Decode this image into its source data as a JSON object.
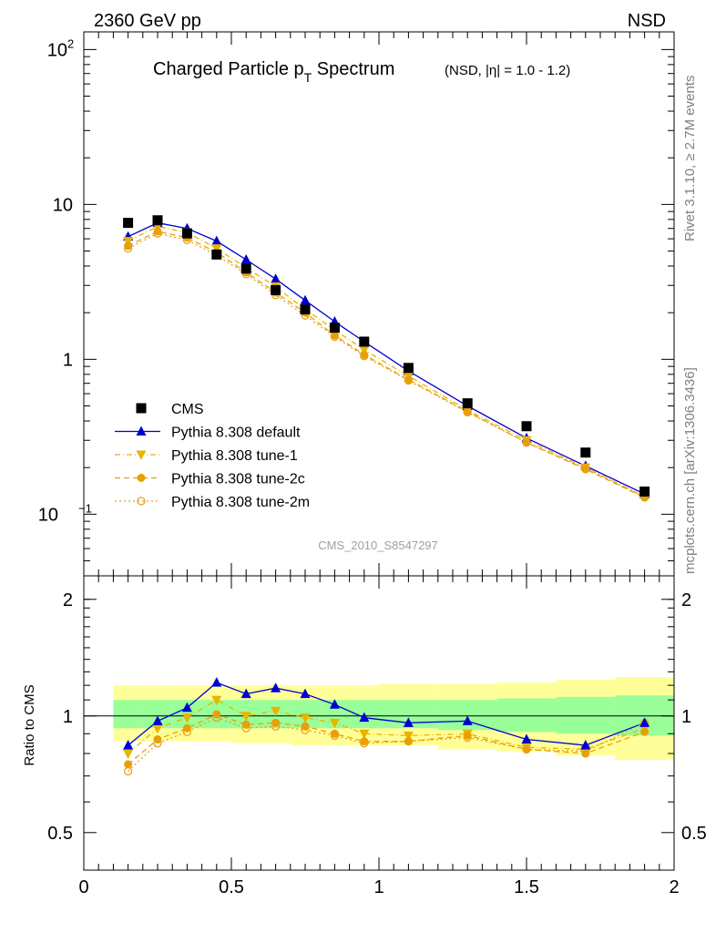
{
  "header": {
    "left": "2360 GeV pp",
    "right": "NSD"
  },
  "side_labels": {
    "rivet": "Rivet 3.1.10, ≥ 2.7M events",
    "mcplots": "mcplots.cern.ch [arXiv:1306.3436]"
  },
  "chart_data": [
    {
      "type": "scatter",
      "title": "Charged Particle p",
      "title_subscript": "T",
      "title_suffix": " Spectrum",
      "subtitle": "(NSD, |η| = 1.0 - 1.2)",
      "watermark": "CMS_2010_S8547297",
      "xlabel": "",
      "ylabel": "",
      "xlim": [
        0,
        2.0
      ],
      "ylim": [
        0.04,
        130
      ],
      "yscale": "log",
      "legend_position": "left",
      "x": [
        0.15,
        0.25,
        0.35,
        0.45,
        0.55,
        0.65,
        0.75,
        0.85,
        0.95,
        1.1,
        1.3,
        1.5,
        1.7,
        1.9
      ],
      "series": [
        {
          "name": "CMS",
          "marker": "square",
          "color": "#000000",
          "line": "none",
          "values": [
            7.6,
            7.9,
            6.5,
            4.75,
            3.85,
            2.8,
            2.1,
            1.6,
            1.3,
            0.88,
            0.52,
            0.37,
            0.25,
            0.14
          ]
        },
        {
          "name": "Pythia 8.308 default",
          "marker": "triangle-up",
          "color": "#0000d0",
          "line": "solid",
          "values": [
            6.2,
            7.6,
            7.0,
            5.8,
            4.4,
            3.3,
            2.4,
            1.75,
            1.3,
            0.84,
            0.5,
            0.31,
            0.205,
            0.135
          ]
        },
        {
          "name": "Pythia 8.308 tune-1",
          "marker": "triangle-down",
          "color": "#e8b400",
          "line": "dashdot",
          "values": [
            5.8,
            7.2,
            6.6,
            5.2,
            3.9,
            2.95,
            2.1,
            1.55,
            1.15,
            0.78,
            0.47,
            0.3,
            0.2,
            0.13
          ]
        },
        {
          "name": "Pythia 8.308 tune-2c",
          "marker": "circle",
          "color": "#e8a000",
          "line": "dashed",
          "values": [
            5.4,
            6.7,
            6.1,
            4.9,
            3.65,
            2.7,
            2.0,
            1.43,
            1.07,
            0.74,
            0.46,
            0.29,
            0.195,
            0.128
          ]
        },
        {
          "name": "Pythia 8.308 tune-2m",
          "marker": "circle-open",
          "color": "#e8a020",
          "line": "dotted",
          "values": [
            5.2,
            6.5,
            5.9,
            4.7,
            3.55,
            2.6,
            1.92,
            1.4,
            1.05,
            0.73,
            0.455,
            0.29,
            0.198,
            0.13
          ]
        }
      ]
    },
    {
      "type": "line",
      "ylabel": "Ratio to CMS",
      "xlabel": "",
      "xlim": [
        0,
        2.0
      ],
      "ylim": [
        0.4,
        2.3
      ],
      "yscale": "log",
      "x_ticks": [
        "0",
        "0.5",
        "1",
        "1.5",
        "2"
      ],
      "y_ticks": [
        "0.5",
        "1",
        "2"
      ],
      "x": [
        0.15,
        0.25,
        0.35,
        0.45,
        0.55,
        0.65,
        0.75,
        0.85,
        0.95,
        1.1,
        1.3,
        1.5,
        1.7,
        1.9
      ],
      "bin_edges": [
        0.1,
        0.2,
        0.3,
        0.4,
        0.5,
        0.6,
        0.7,
        0.8,
        0.9,
        1.0,
        1.2,
        1.4,
        1.6,
        1.8,
        2.0
      ],
      "bands": {
        "inner_color": "#99ff99",
        "outer_color": "#ffff99",
        "inner": [
          [
            0.93,
            1.1
          ],
          [
            0.93,
            1.1
          ],
          [
            0.93,
            1.1
          ],
          [
            0.93,
            1.1
          ],
          [
            0.93,
            1.1
          ],
          [
            0.93,
            1.1
          ],
          [
            0.93,
            1.1
          ],
          [
            0.93,
            1.1
          ],
          [
            0.93,
            1.1
          ],
          [
            0.93,
            1.1
          ],
          [
            0.92,
            1.1
          ],
          [
            0.91,
            1.11
          ],
          [
            0.9,
            1.12
          ],
          [
            0.89,
            1.13
          ]
        ],
        "outer": [
          [
            0.86,
            1.2
          ],
          [
            0.86,
            1.2
          ],
          [
            0.86,
            1.2
          ],
          [
            0.86,
            1.2
          ],
          [
            0.85,
            1.2
          ],
          [
            0.85,
            1.2
          ],
          [
            0.84,
            1.2
          ],
          [
            0.84,
            1.2
          ],
          [
            0.84,
            1.2
          ],
          [
            0.84,
            1.21
          ],
          [
            0.82,
            1.21
          ],
          [
            0.81,
            1.22
          ],
          [
            0.79,
            1.24
          ],
          [
            0.77,
            1.26
          ]
        ]
      },
      "series": [
        {
          "name": "Pythia 8.308 default",
          "marker": "triangle-up",
          "color": "#0000d0",
          "line": "solid",
          "values": [
            0.84,
            0.97,
            1.05,
            1.22,
            1.14,
            1.18,
            1.14,
            1.07,
            0.99,
            0.96,
            0.97,
            0.87,
            0.84,
            0.96
          ]
        },
        {
          "name": "Pythia 8.308 tune-1",
          "marker": "triangle-down",
          "color": "#e8b400",
          "line": "dashdot",
          "values": [
            0.8,
            0.93,
            0.99,
            1.1,
            1.0,
            1.03,
            0.99,
            0.96,
            0.9,
            0.89,
            0.9,
            0.83,
            0.82,
            0.93
          ]
        },
        {
          "name": "Pythia 8.308 tune-2c",
          "marker": "circle",
          "color": "#e8a000",
          "line": "dashed",
          "values": [
            0.75,
            0.87,
            0.93,
            1.01,
            0.95,
            0.96,
            0.94,
            0.9,
            0.86,
            0.86,
            0.89,
            0.82,
            0.8,
            0.91
          ]
        },
        {
          "name": "Pythia 8.308 tune-2m",
          "marker": "circle-open",
          "color": "#e8a020",
          "line": "dotted",
          "values": [
            0.72,
            0.85,
            0.91,
            0.99,
            0.93,
            0.94,
            0.92,
            0.89,
            0.85,
            0.86,
            0.88,
            0.82,
            0.81,
            0.96
          ]
        }
      ]
    }
  ]
}
